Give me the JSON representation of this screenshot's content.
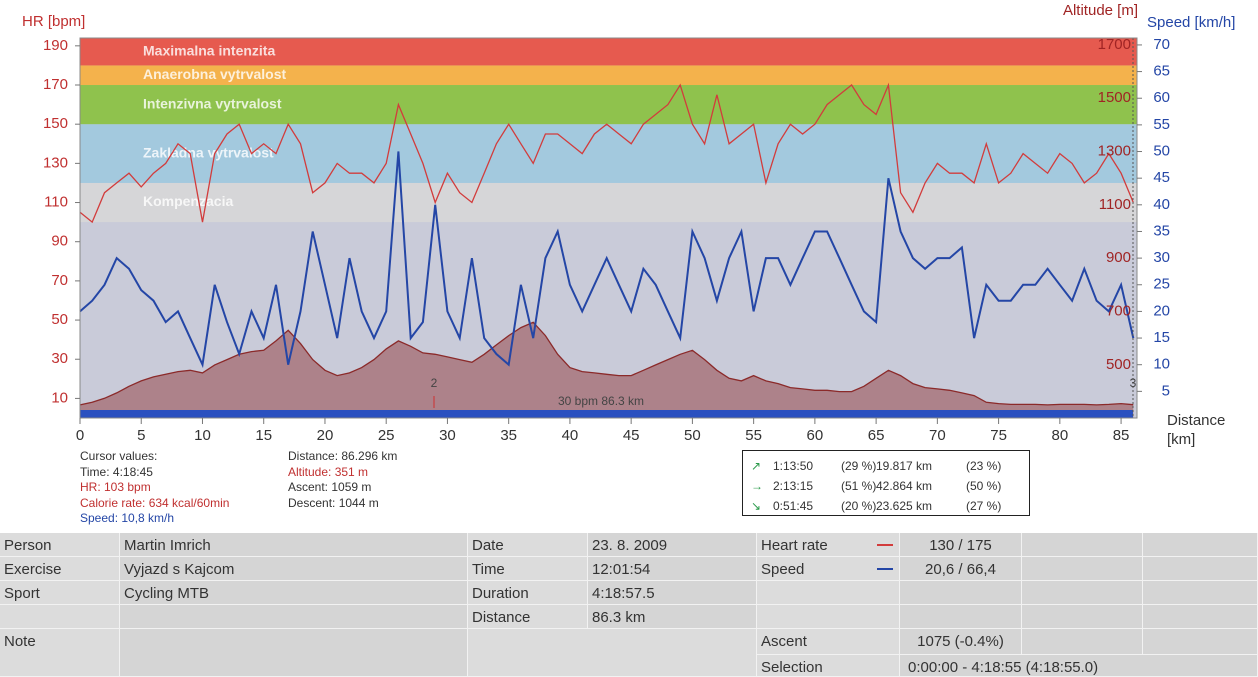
{
  "chart_data": {
    "type": "line",
    "hr_label": "HR [bpm]",
    "altitude_label": "Altitude [m]",
    "speed_label": "Speed [km/h]",
    "xlabel_lines": [
      "Distance",
      "[km]"
    ],
    "xlim": [
      0,
      86.3
    ],
    "xticks": [
      0,
      5,
      10,
      15,
      20,
      25,
      30,
      35,
      40,
      45,
      50,
      55,
      60,
      65,
      70,
      75,
      80,
      85
    ],
    "ylim": [
      0,
      194
    ],
    "yticks": [
      10,
      30,
      50,
      70,
      90,
      110,
      130,
      150,
      170,
      190
    ],
    "y2lim": [
      0,
      71.3
    ],
    "y2ticks": [
      5,
      10,
      15,
      20,
      25,
      30,
      35,
      40,
      45,
      50,
      55,
      60,
      65,
      70
    ],
    "y3lim": [
      301,
      1726
    ],
    "y3ticks": [
      500,
      700,
      900,
      1100,
      1300,
      1500,
      1700
    ],
    "zones": [
      {
        "name": "Kompenzacia",
        "from": 100,
        "to": 120,
        "color": "#d6d6d8"
      },
      {
        "name": "Zakladna vytrvalost",
        "from": 120,
        "to": 150,
        "color": "#a3c9de"
      },
      {
        "name": "Intenzivna vytrvalost",
        "from": 150,
        "to": 170,
        "color": "#8fc24d"
      },
      {
        "name": "Anaerobna vytrvalost",
        "from": 170,
        "to": 180,
        "color": "#f4b24c"
      },
      {
        "name": "Maximalna intenzita",
        "from": 180,
        "to": 194,
        "color": "#e65a4f"
      }
    ],
    "x": [
      0,
      1,
      2,
      3,
      4,
      5,
      6,
      7,
      8,
      9,
      10,
      11,
      12,
      13,
      14,
      15,
      16,
      17,
      18,
      19,
      20,
      21,
      22,
      23,
      24,
      25,
      26,
      27,
      28,
      29,
      30,
      31,
      32,
      33,
      34,
      35,
      36,
      37,
      38,
      39,
      40,
      41,
      42,
      43,
      44,
      45,
      46,
      47,
      48,
      49,
      50,
      51,
      52,
      53,
      54,
      55,
      56,
      57,
      58,
      59,
      60,
      61,
      62,
      63,
      64,
      65,
      66,
      67,
      68,
      69,
      70,
      71,
      72,
      73,
      74,
      75,
      76,
      77,
      78,
      79,
      80,
      81,
      82,
      83,
      84,
      85,
      86
    ],
    "series": [
      {
        "axis": "y3",
        "color": "#8b2a2a",
        "values": [
          350,
          360,
          375,
          395,
          420,
          440,
          455,
          465,
          475,
          480,
          470,
          500,
          520,
          540,
          550,
          555,
          590,
          630,
          580,
          520,
          480,
          460,
          470,
          490,
          520,
          560,
          590,
          570,
          545,
          540,
          530,
          520,
          510,
          540,
          575,
          610,
          640,
          660,
          610,
          540,
          490,
          475,
          470,
          465,
          460,
          460,
          480,
          500,
          520,
          540,
          555,
          520,
          480,
          450,
          440,
          460,
          440,
          430,
          415,
          410,
          405,
          405,
          400,
          400,
          420,
          450,
          480,
          460,
          430,
          415,
          410,
          405,
          395,
          385,
          360,
          355,
          352,
          352,
          352,
          350,
          352,
          352,
          352,
          350,
          352,
          355,
          351
        ]
      },
      {
        "axis": "y",
        "color": "#d23c3c",
        "values": [
          105,
          100,
          115,
          120,
          125,
          118,
          125,
          130,
          140,
          135,
          100,
          135,
          145,
          150,
          135,
          140,
          135,
          150,
          140,
          115,
          120,
          130,
          125,
          125,
          120,
          130,
          160,
          145,
          130,
          110,
          125,
          115,
          110,
          125,
          140,
          150,
          140,
          130,
          145,
          145,
          140,
          135,
          145,
          150,
          145,
          140,
          150,
          155,
          160,
          170,
          150,
          140,
          165,
          140,
          145,
          150,
          120,
          140,
          150,
          145,
          150,
          160,
          165,
          170,
          160,
          155,
          170,
          115,
          105,
          120,
          130,
          125,
          125,
          120,
          140,
          120,
          125,
          135,
          130,
          125,
          135,
          130,
          120,
          125,
          135,
          125,
          110
        ]
      },
      {
        "axis": "y2",
        "color": "#2446a6",
        "values": [
          20,
          22,
          25,
          30,
          28,
          24,
          22,
          18,
          20,
          15,
          10,
          25,
          18,
          12,
          20,
          15,
          25,
          10,
          20,
          35,
          25,
          15,
          30,
          20,
          15,
          20,
          50,
          15,
          18,
          40,
          20,
          15,
          30,
          15,
          12,
          10,
          25,
          15,
          30,
          35,
          25,
          20,
          25,
          30,
          25,
          20,
          28,
          25,
          20,
          15,
          35,
          30,
          22,
          30,
          35,
          20,
          30,
          30,
          25,
          30,
          35,
          35,
          30,
          25,
          20,
          18,
          45,
          35,
          30,
          28,
          30,
          30,
          32,
          15,
          25,
          22,
          22,
          25,
          25,
          28,
          25,
          22,
          28,
          22,
          20,
          25,
          15
        ]
      }
    ],
    "annotations": [
      "30 bpm 86.3 km",
      "2",
      "3"
    ]
  },
  "cursor": {
    "title": "Cursor values:",
    "time": "Time: 4:18:45",
    "hr": "HR: 103 bpm",
    "calorie": "Calorie rate: 634 kcal/60min",
    "speed": "Speed: 10,8 km/h",
    "distance": "Distance: 86.296 km",
    "altitude": "Altitude: 351 m",
    "ascent": "Ascent: 1059 m",
    "descent": "Descent: 1044 m"
  },
  "stats": [
    {
      "time": "1:13:50",
      "time_pct": "(29 %)",
      "distance": "19.817 km",
      "distance_pct": "(23 %)"
    },
    {
      "time": "2:13:15",
      "time_pct": "(51 %)",
      "distance": "42.864 km",
      "distance_pct": "(50 %)"
    },
    {
      "time": "0:51:45",
      "time_pct": "(20 %)",
      "distance": "23.625 km",
      "distance_pct": "(27 %)"
    }
  ],
  "details": [
    {
      "label": "Person",
      "value": "Martin Imrich"
    },
    {
      "label": "Exercise",
      "value": "Vyjazd s Kajcom"
    },
    {
      "label": "Sport",
      "value": "Cycling MTB"
    },
    {
      "label": "Note"
    }
  ],
  "session": [
    {
      "label": "Date",
      "value": "23. 8. 2009"
    },
    {
      "label": "Time",
      "value": "12:01:54"
    },
    {
      "label": "Duration",
      "value": "4:18:57.5"
    },
    {
      "label": "Distance",
      "value": "86.3 km"
    }
  ],
  "summary": [
    {
      "label": "Heart rate",
      "value": "130 / 175"
    },
    {
      "label": "Speed",
      "value": "20,6 / 66,4"
    },
    {
      "label": "Ascent",
      "value": "1075 (-0.4%)"
    },
    {
      "label": "Selection",
      "value": "0:00:00 - 4:18:55 (4:18:55.0)"
    }
  ]
}
